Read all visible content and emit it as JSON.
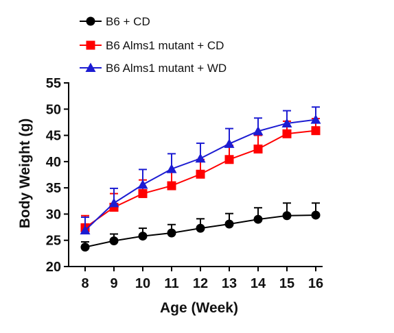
{
  "chart_data": {
    "type": "line",
    "xlabel": "Age (Week)",
    "ylabel": "Body Weight (g)",
    "x": [
      8,
      9,
      10,
      11,
      12,
      13,
      14,
      15,
      16
    ],
    "xlim": [
      8,
      16
    ],
    "ylim": [
      20,
      55
    ],
    "yticks": [
      20,
      25,
      30,
      35,
      40,
      45,
      50,
      55
    ],
    "grid": false,
    "legend_position": "top-left",
    "series": [
      {
        "name": "B6 + CD",
        "marker": "circle",
        "color": "#000000",
        "values": [
          23.7,
          24.9,
          25.8,
          26.4,
          27.3,
          28.1,
          29.0,
          29.7,
          29.8
        ],
        "error": [
          1.0,
          1.3,
          1.5,
          1.6,
          1.8,
          2.0,
          2.2,
          2.4,
          2.3
        ]
      },
      {
        "name": "B6 Alms1 mutant + CD",
        "marker": "square",
        "color": "#ff0000",
        "values": [
          27.4,
          31.3,
          33.9,
          35.4,
          37.6,
          40.4,
          42.4,
          45.3,
          45.9
        ],
        "error": [
          2.3,
          2.6,
          2.6,
          2.7,
          2.8,
          2.7,
          2.6,
          2.4,
          2.3
        ]
      },
      {
        "name": "B6 Alms1 mutant + WD",
        "marker": "triangle",
        "color": "#1c1cd2",
        "values": [
          26.9,
          32.1,
          35.6,
          38.6,
          40.6,
          43.4,
          45.8,
          47.3,
          48.0
        ],
        "error": [
          2.5,
          2.8,
          2.9,
          2.9,
          2.9,
          2.9,
          2.5,
          2.4,
          2.4
        ]
      }
    ]
  }
}
